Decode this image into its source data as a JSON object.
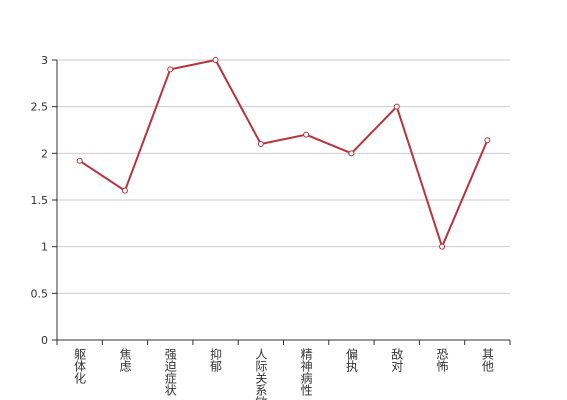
{
  "chart_data": {
    "type": "line",
    "categories": [
      "躯体化",
      "焦虑",
      "强迫症状",
      "抑郁",
      "人际关系敏感",
      "精神病性",
      "偏执",
      "敌对",
      "恐怖",
      "其他"
    ],
    "values": [
      1.92,
      1.6,
      2.9,
      3,
      2.1,
      2.2,
      2,
      2.5,
      1,
      2.14
    ],
    "color": "#b8333a",
    "ylim": [
      0,
      3
    ],
    "yticks": [
      0,
      0.5,
      1,
      1.5,
      2,
      2.5,
      3
    ],
    "grid": true
  }
}
